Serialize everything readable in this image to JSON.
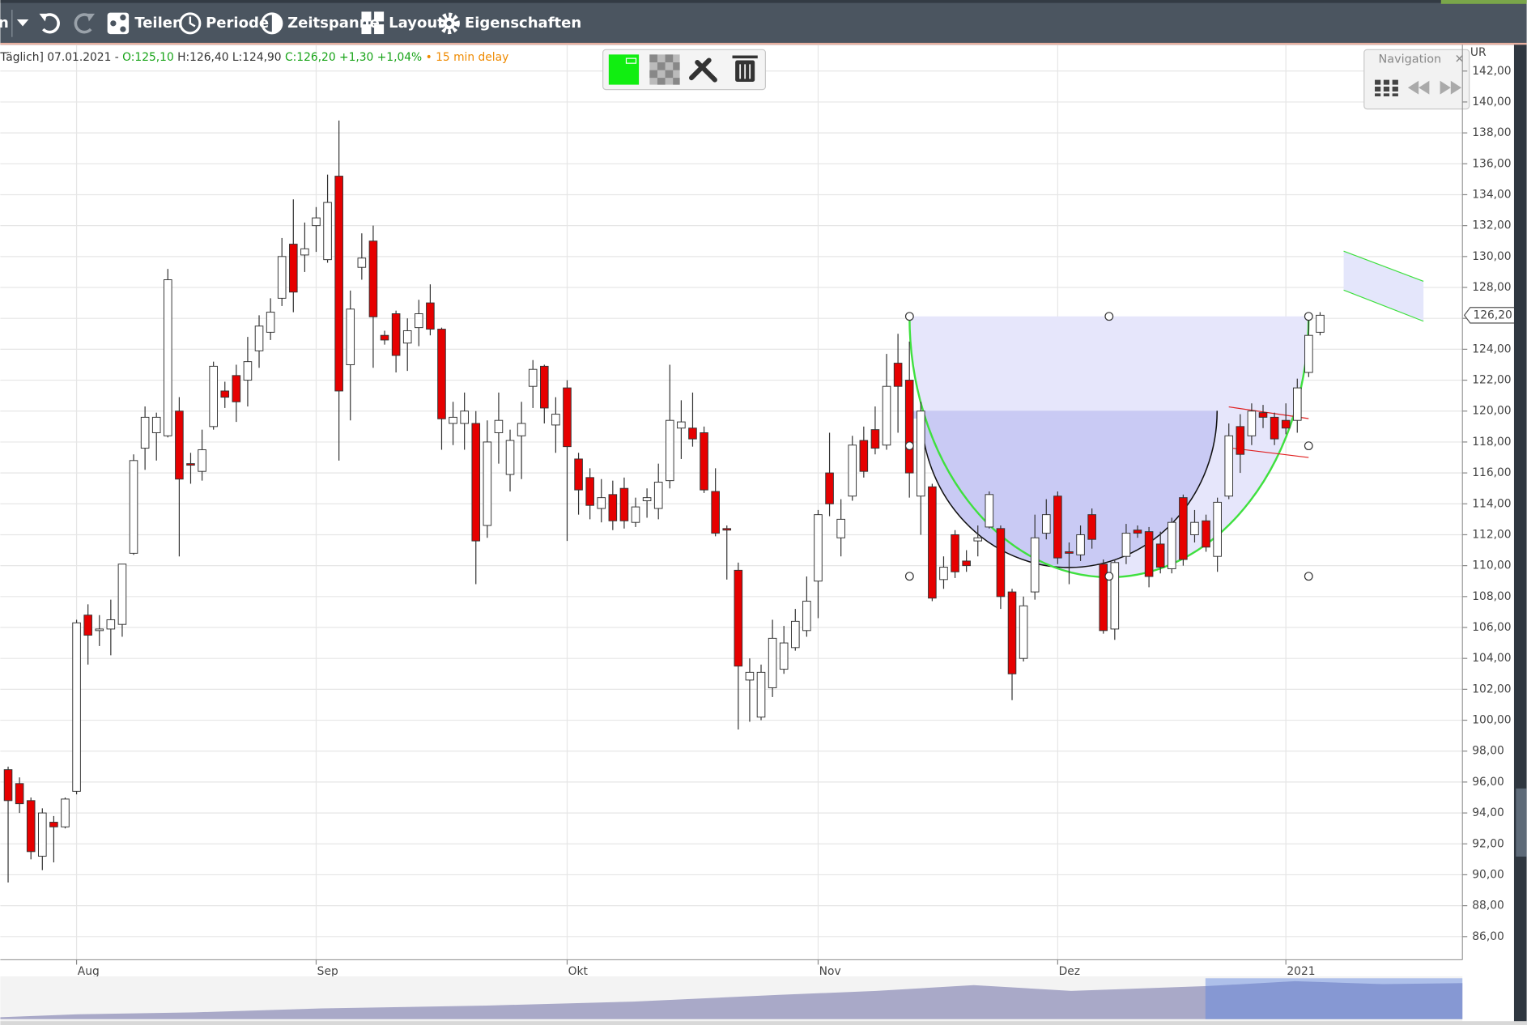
{
  "toolbar": {
    "menu_fragment": "n",
    "items": [
      "Teilen",
      "Periode",
      "Zeitspanne",
      "Layout",
      "Eigenschaften"
    ]
  },
  "navigation": {
    "title": "Navigation"
  },
  "chart_data": {
    "type": "candlestick",
    "info": [
      "Täglich] 07.01.2021 - ",
      "O:125,10 ",
      "H:126,40 L:124,90 ",
      "C:126,20 +1,30 +1,04% ",
      "• 15 min delay"
    ],
    "currency": "UR",
    "categories": [
      null,
      null,
      null,
      null,
      null,
      null,
      "Aug",
      null,
      null,
      null,
      null,
      null,
      null,
      null,
      null,
      null,
      null,
      null,
      null,
      null,
      null,
      null,
      null,
      null,
      null,
      null,
      null,
      "Sep",
      null,
      null,
      null,
      null,
      null,
      null,
      null,
      null,
      null,
      null,
      null,
      null,
      null,
      null,
      null,
      null,
      null,
      null,
      null,
      null,
      null,
      "Okt",
      null,
      null,
      null,
      null,
      null,
      null,
      null,
      null,
      null,
      null,
      null,
      null,
      null,
      null,
      null,
      null,
      null,
      null,
      null,
      null,
      null,
      "Nov",
      null,
      null,
      null,
      null,
      null,
      null,
      null,
      null,
      null,
      null,
      null,
      null,
      null,
      null,
      null,
      null,
      null,
      null,
      null,
      null,
      "Dez",
      null,
      null,
      null,
      null,
      null,
      null,
      null,
      null,
      null,
      null,
      null,
      null,
      null,
      null,
      null,
      null,
      null,
      null,
      null,
      "2021",
      null,
      null,
      null
    ],
    "open": [
      96.8,
      95.9,
      94.8,
      91.2,
      93.4,
      93.1,
      95.4,
      106.8,
      105.8,
      105.9,
      106.2,
      110.8,
      117.6,
      118.6,
      118.4,
      120,
      116.6,
      116.1,
      119,
      121.3,
      122.3,
      122,
      123.9,
      125.1,
      127.3,
      130.8,
      130.1,
      132,
      129.8,
      135.2,
      123,
      129.3,
      131,
      124.9,
      126.3,
      124.4,
      125.4,
      127,
      125.3,
      119.2,
      119.2,
      119.2,
      112.6,
      118.6,
      115.9,
      118.4,
      121.6,
      122.9,
      119.1,
      121.5,
      116.9,
      115.7,
      113.7,
      114.6,
      115,
      112.8,
      114.2,
      113.7,
      115.5,
      118.9,
      118.9,
      118.6,
      114.8,
      112.4,
      109.7,
      102.6,
      100.2,
      102.1,
      103.3,
      104.7,
      105.8,
      109,
      116,
      111.8,
      114.5,
      118.1,
      118.8,
      117.8,
      123.1,
      122,
      114.5,
      115.1,
      109.1,
      112,
      110.3,
      111.6,
      112.5,
      112.4,
      108.3,
      104,
      108.3,
      112.1,
      114.5,
      110.9,
      110.7,
      113.3,
      110.1,
      105.9,
      110.6,
      112.3,
      112.2,
      111.4,
      109.8,
      114.4,
      112,
      112.9,
      110.6,
      114.5,
      119,
      118.4,
      119.9,
      119.6,
      119.4,
      119.4,
      122.5,
      125.1
    ],
    "high": [
      97,
      96.3,
      95,
      94.3,
      93.8,
      95,
      106.5,
      107.5,
      106.8,
      107.8,
      110.1,
      117.2,
      120.3,
      119.9,
      129.2,
      120.9,
      117.3,
      118.8,
      123.2,
      121.9,
      123,
      124.8,
      126.2,
      127.3,
      131.2,
      133.7,
      132.2,
      133.2,
      135.3,
      138.8,
      127.8,
      131.5,
      132,
      125.2,
      126.5,
      126,
      127.2,
      128.2,
      125.4,
      120.6,
      121.2,
      120,
      119.4,
      121.2,
      118.8,
      120.6,
      123.3,
      123,
      120.9,
      122,
      117.3,
      116.3,
      115.6,
      115.5,
      115.7,
      114.4,
      115,
      116.6,
      123,
      120.7,
      121.2,
      119,
      116.3,
      112.6,
      110.2,
      104,
      103.6,
      106.5,
      106.1,
      107.2,
      109.3,
      113.6,
      118.6,
      114.3,
      118.4,
      119,
      120.3,
      123.7,
      125,
      124.5,
      120.6,
      115.3,
      110.6,
      112.3,
      111,
      112.6,
      114.8,
      112.6,
      108.5,
      108,
      113.3,
      114.3,
      114.8,
      111.5,
      112.6,
      113.7,
      110.4,
      110.4,
      112.7,
      112.6,
      112.5,
      112.2,
      113.1,
      114.6,
      113.6,
      113.3,
      114.4,
      119.2,
      119.8,
      120.5,
      120.4,
      119.9,
      120.5,
      122.1,
      125.9,
      126.4
    ],
    "low": [
      89.5,
      94,
      91,
      90.3,
      90.8,
      93,
      95.2,
      103.6,
      104.8,
      104.2,
      105.4,
      110.7,
      116.2,
      116.8,
      118.3,
      110.6,
      115.3,
      115.5,
      118.8,
      120.2,
      119.3,
      120.3,
      122.8,
      124.6,
      126.8,
      126.4,
      129,
      130.3,
      129.6,
      116.8,
      119.4,
      128.5,
      122.8,
      124.3,
      122.5,
      122.6,
      124.2,
      124.9,
      117.5,
      117.8,
      117.5,
      108.8,
      111.8,
      116.6,
      114.8,
      115.6,
      120.2,
      119.2,
      117.3,
      111.6,
      113.3,
      113,
      112.8,
      112.3,
      112.4,
      112.5,
      113.1,
      113,
      115,
      116.9,
      117.7,
      114.7,
      111.9,
      109.1,
      99.4,
      99.9,
      100,
      101.5,
      103,
      104.5,
      105.4,
      106.6,
      113.2,
      110.6,
      114.2,
      115.7,
      117.2,
      117.5,
      118.6,
      114.4,
      112,
      107.7,
      108.5,
      109.2,
      109.6,
      110.6,
      112.4,
      107.2,
      101.3,
      103.8,
      107.8,
      111.7,
      110.1,
      108.8,
      110.3,
      111.1,
      105.6,
      105.2,
      110.1,
      111.8,
      108.6,
      109.5,
      109.5,
      110,
      111.5,
      110.9,
      109.6,
      114.3,
      116,
      117.8,
      118.9,
      117.8,
      118.5,
      118.6,
      122.2,
      124.9
    ],
    "close": [
      94.8,
      94.6,
      91.5,
      94,
      93.1,
      94.9,
      106.3,
      105.5,
      105.9,
      106.5,
      110.1,
      116.8,
      119.6,
      119.6,
      128.5,
      115.6,
      116.5,
      117.5,
      122.9,
      120.9,
      120.6,
      123.2,
      125.5,
      126.4,
      130,
      127.7,
      130.5,
      132.5,
      133.5,
      121.3,
      126.6,
      129.9,
      126.1,
      124.6,
      123.6,
      125.2,
      126.3,
      125.3,
      119.5,
      119.6,
      120,
      111.6,
      118,
      119.4,
      118.1,
      119.2,
      122.7,
      120.2,
      119.8,
      117.7,
      114.9,
      113.9,
      114.4,
      112.9,
      112.9,
      113.8,
      114.4,
      115.4,
      119.4,
      119.3,
      118.2,
      114.9,
      112.1,
      112.3,
      103.5,
      103.1,
      103.1,
      105.3,
      105,
      106.4,
      107.7,
      113.3,
      114,
      113,
      117.8,
      116.1,
      117.6,
      121.6,
      121.6,
      116,
      120,
      107.9,
      109.9,
      109.6,
      110,
      111.8,
      114.6,
      108,
      103,
      107.4,
      111.8,
      113.3,
      110.5,
      110.8,
      112,
      111.7,
      105.8,
      110.2,
      112.1,
      112.1,
      109.3,
      109.9,
      112.8,
      110.4,
      112.8,
      111.2,
      114.1,
      118.4,
      117.2,
      120,
      119.6,
      118.2,
      118.9,
      121.5,
      124.9,
      126.2
    ],
    "ylim": [
      84.5,
      143.7
    ],
    "yticks": [
      {
        "value": 86,
        "label": "86,00"
      },
      {
        "value": 88,
        "label": "88,00"
      },
      {
        "value": 90,
        "label": "90,00"
      },
      {
        "value": 92,
        "label": "92,00"
      },
      {
        "value": 94,
        "label": "94,00"
      },
      {
        "value": 96,
        "label": "96,00"
      },
      {
        "value": 98,
        "label": "98,00"
      },
      {
        "value": 100,
        "label": "100,00"
      },
      {
        "value": 102,
        "label": "102,00"
      },
      {
        "value": 104,
        "label": "104,00"
      },
      {
        "value": 106,
        "label": "106,00"
      },
      {
        "value": 108,
        "label": "108,00"
      },
      {
        "value": 110,
        "label": "110,00"
      },
      {
        "value": 112,
        "label": "112,00"
      },
      {
        "value": 114,
        "label": "114,00"
      },
      {
        "value": 116,
        "label": "116,00"
      },
      {
        "value": 118,
        "label": "118,00"
      },
      {
        "value": 120,
        "label": "120,00"
      },
      {
        "value": 122,
        "label": "122,00"
      },
      {
        "value": 124,
        "label": "124,00"
      },
      {
        "value": 126,
        "label": "126,00"
      },
      {
        "value": 128,
        "label": "128,00"
      },
      {
        "value": 130,
        "label": "130,00"
      },
      {
        "value": 132,
        "label": "132,00"
      },
      {
        "value": 134,
        "label": "134,00"
      },
      {
        "value": 136,
        "label": "136,00"
      },
      {
        "value": 138,
        "label": "138,00"
      },
      {
        "value": 140,
        "label": "140,00"
      },
      {
        "value": 142,
        "label": "142,00"
      }
    ],
    "up_color": "#ffffff",
    "down_color": "#e60000",
    "grid": true,
    "last_price": {
      "value": 126.2,
      "label": "126,20"
    }
  }
}
